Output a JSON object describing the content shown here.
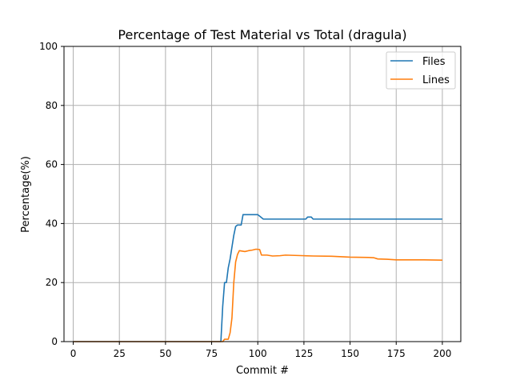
{
  "chart_data": {
    "type": "line",
    "title": "Percentage of Test Material vs Total (dragula)",
    "xlabel": "Commit #",
    "ylabel": "Percentage(%)",
    "xlim": [
      -5,
      210
    ],
    "ylim": [
      0,
      100
    ],
    "xticks": [
      0,
      25,
      50,
      75,
      100,
      125,
      150,
      175,
      200
    ],
    "yticks": [
      0,
      20,
      40,
      60,
      80,
      100
    ],
    "grid": true,
    "legend": "top-right",
    "series": [
      {
        "name": "Files",
        "color": "#1f77b4",
        "points": [
          [
            0,
            0
          ],
          [
            80,
            0
          ],
          [
            81,
            12
          ],
          [
            82,
            20
          ],
          [
            83,
            20
          ],
          [
            84,
            25
          ],
          [
            85,
            28
          ],
          [
            86,
            32
          ],
          [
            87,
            36
          ],
          [
            88,
            39
          ],
          [
            89,
            39.5
          ],
          [
            91,
            39.5
          ],
          [
            92,
            43
          ],
          [
            100,
            43
          ],
          [
            101,
            42.5
          ],
          [
            103,
            41.5
          ],
          [
            126,
            41.5
          ],
          [
            127,
            42.2
          ],
          [
            129,
            42.2
          ],
          [
            130,
            41.5
          ],
          [
            200,
            41.5
          ]
        ]
      },
      {
        "name": "Lines",
        "color": "#ff7f0e",
        "points": [
          [
            0,
            0
          ],
          [
            81,
            0
          ],
          [
            82,
            0.8
          ],
          [
            84,
            0.8
          ],
          [
            85,
            3
          ],
          [
            86,
            8
          ],
          [
            87,
            20
          ],
          [
            88,
            27
          ],
          [
            89,
            29.5
          ],
          [
            90,
            30.8
          ],
          [
            93,
            30.5
          ],
          [
            95,
            30.8
          ],
          [
            97,
            31
          ],
          [
            99,
            31.3
          ],
          [
            101,
            31.2
          ],
          [
            102,
            29.3
          ],
          [
            105,
            29.3
          ],
          [
            108,
            29
          ],
          [
            112,
            29.1
          ],
          [
            115,
            29.3
          ],
          [
            120,
            29.2
          ],
          [
            125,
            29.1
          ],
          [
            130,
            29
          ],
          [
            140,
            28.9
          ],
          [
            150,
            28.6
          ],
          [
            160,
            28.5
          ],
          [
            163,
            28.4
          ],
          [
            165,
            28
          ],
          [
            170,
            27.9
          ],
          [
            175,
            27.7
          ],
          [
            190,
            27.7
          ],
          [
            200,
            27.6
          ]
        ]
      }
    ]
  }
}
